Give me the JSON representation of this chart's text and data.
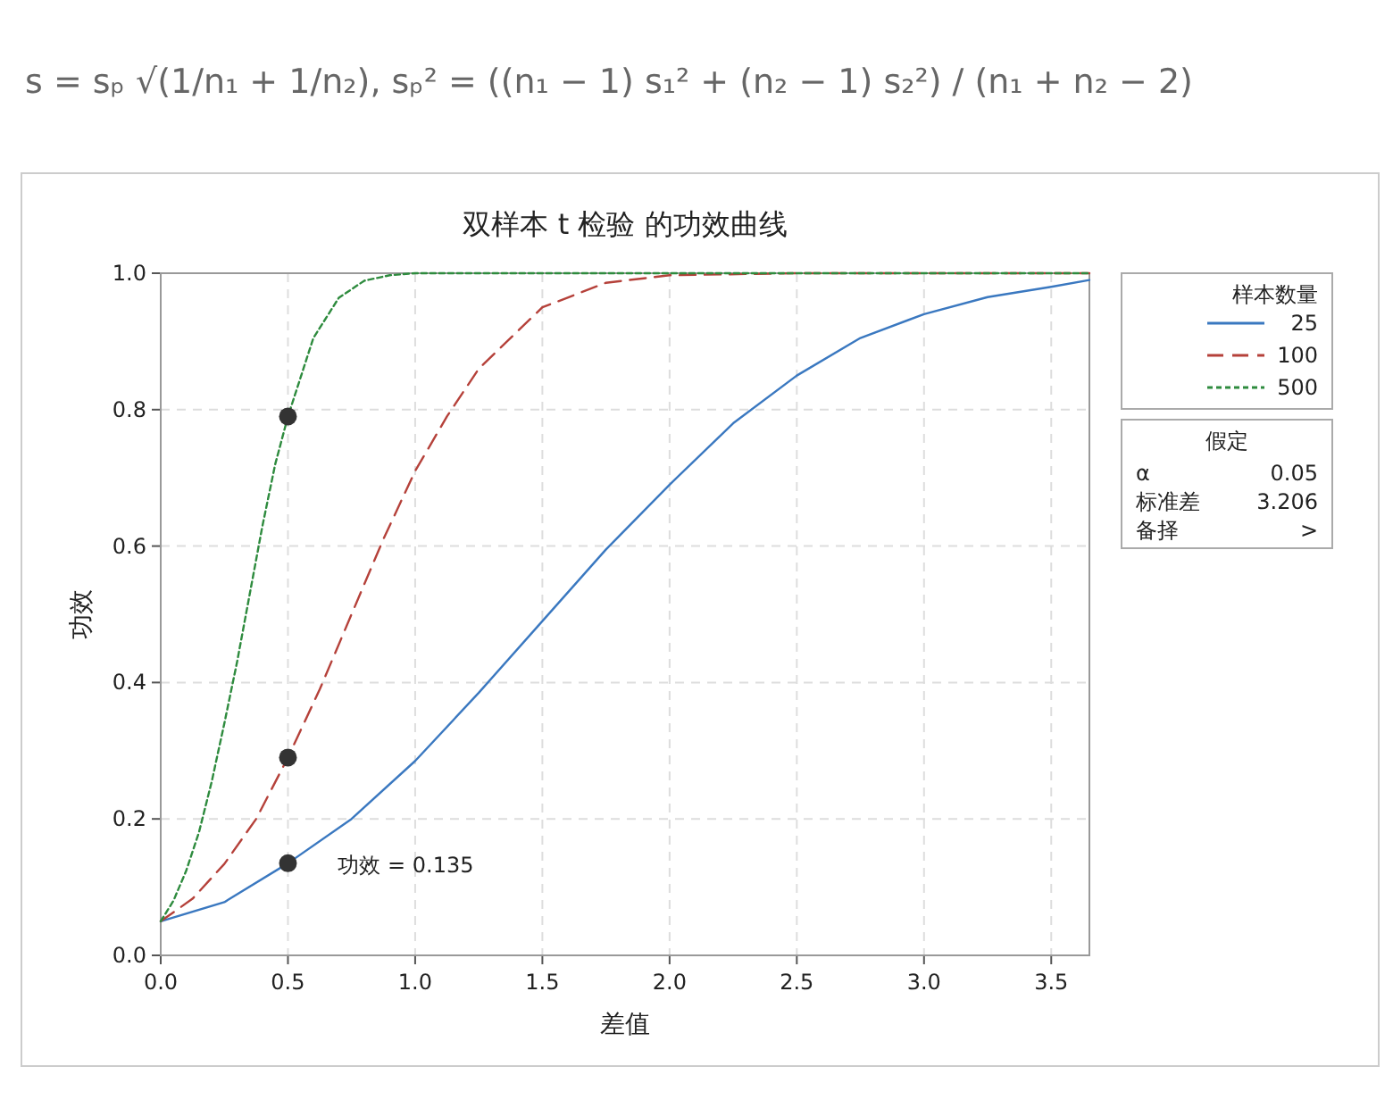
{
  "chart_data": {
    "type": "line",
    "title": "双样本 t 检验 的功效曲线",
    "xlabel": "差值",
    "ylabel": "功效",
    "legend_title": "样本数量",
    "annotations": [
      "s = sₚ √(1/n₁ + 1/n₂),  sₚ² = ((n₁ − 1) s₁² + (n₂ − 1) s₂²) / (n₁ + n₂ − 2)",
      {
        "text": "功效 = 0.135",
        "x": 0.5,
        "y": 0.135
      },
      "假定",
      "α",
      "0.05",
      "标准差",
      "3.206",
      "备择",
      ">"
    ],
    "series": [
      {
        "name": "25",
        "color": "#3a78c0",
        "line_style": "solid",
        "x": [
          0,
          0.25,
          0.5,
          0.75,
          1.0,
          1.25,
          1.5,
          1.75,
          2.0,
          2.25,
          2.5,
          2.75,
          3.0,
          3.25,
          3.5,
          3.65
        ],
        "values": [
          0.05,
          0.078,
          0.135,
          0.2,
          0.285,
          0.385,
          0.49,
          0.595,
          0.69,
          0.78,
          0.85,
          0.905,
          0.94,
          0.965,
          0.98,
          0.99
        ]
      },
      {
        "name": "100",
        "color": "#b5413a",
        "line_style": "dashed",
        "x": [
          0,
          0.125,
          0.25,
          0.375,
          0.5,
          0.625,
          0.75,
          0.875,
          1.0,
          1.125,
          1.25,
          1.5,
          1.75,
          2.0,
          2.5,
          3.0,
          3.65
        ],
        "values": [
          0.05,
          0.083,
          0.134,
          0.2,
          0.29,
          0.39,
          0.5,
          0.61,
          0.71,
          0.79,
          0.86,
          0.95,
          0.986,
          0.997,
          1.0,
          1.0,
          1.0
        ]
      },
      {
        "name": "500",
        "color": "#2e8b3e",
        "line_style": "dotted",
        "x": [
          0,
          0.05,
          0.1,
          0.15,
          0.2,
          0.25,
          0.3,
          0.35,
          0.4,
          0.45,
          0.5,
          0.6,
          0.7,
          0.8,
          0.9,
          1.0,
          2.0,
          3.0,
          3.65
        ],
        "values": [
          0.05,
          0.08,
          0.124,
          0.18,
          0.254,
          0.34,
          0.43,
          0.53,
          0.63,
          0.72,
          0.79,
          0.905,
          0.964,
          0.989,
          0.997,
          1.0,
          1.0,
          1.0,
          1.0
        ]
      },
      {
        "type": "scatter",
        "color": "#333333",
        "marker": "circle",
        "x": [
          0.5,
          0.5,
          0.5
        ],
        "values": [
          0.79,
          0.29,
          0.135
        ]
      }
    ],
    "xlim": [
      0,
      3.65
    ],
    "ylim": [
      0,
      1.0
    ],
    "xticks": [
      {
        "value": 0,
        "label": "0.0"
      },
      {
        "value": 0.5,
        "label": "0.5"
      },
      {
        "value": 1,
        "label": "1.0"
      },
      {
        "value": 1.5,
        "label": "1.5"
      },
      {
        "value": 2,
        "label": "2.0"
      },
      {
        "value": 2.5,
        "label": "2.5"
      },
      {
        "value": 3,
        "label": "3.0"
      },
      {
        "value": 3.5,
        "label": "3.5"
      }
    ],
    "yticks": [
      {
        "value": 0,
        "label": "0.0"
      },
      {
        "value": 0.2,
        "label": "0.2"
      },
      {
        "value": 0.4,
        "label": "0.4"
      },
      {
        "value": 0.6,
        "label": "0.6"
      },
      {
        "value": 0.8,
        "label": "0.8"
      },
      {
        "value": 1,
        "label": "1.0"
      }
    ],
    "grid": true,
    "legend": "right"
  }
}
